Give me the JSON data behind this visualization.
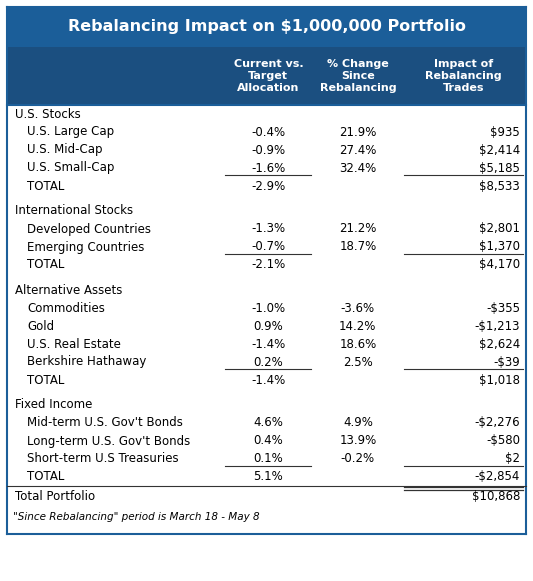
{
  "title": "Rebalancing Impact on $1,000,000 Portfolio",
  "title_bg": "#1b5e99",
  "title_color": "#ffffff",
  "header_bg": "#1b4f80",
  "header_color": "#ffffff",
  "col_headers": [
    "Current vs.\nTarget\nAllocation",
    "% Change\nSince\nRebalancing",
    "Impact of\nRebalancing\nTrades"
  ],
  "body_bg": "#ffffff",
  "border_color": "#1b5e99",
  "text_color": "#000000",
  "rows": [
    {
      "type": "section",
      "label": "U.S. Stocks",
      "col1": "",
      "col2": "",
      "col3": ""
    },
    {
      "type": "sub",
      "label": "U.S. Large Cap",
      "col1": "-0.4%",
      "col2": "21.9%",
      "col3": "$935",
      "ul1": false,
      "ul3": false
    },
    {
      "type": "sub",
      "label": "U.S. Mid-Cap",
      "col1": "-0.9%",
      "col2": "27.4%",
      "col3": "$2,414",
      "ul1": false,
      "ul3": false
    },
    {
      "type": "sub",
      "label": "U.S. Small-Cap",
      "col1": "-1.6%",
      "col2": "32.4%",
      "col3": "$5,185",
      "ul1": true,
      "ul3": true
    },
    {
      "type": "total",
      "label": "TOTAL",
      "col1": "-2.9%",
      "col2": "",
      "col3": "$8,533"
    },
    {
      "type": "gap"
    },
    {
      "type": "section",
      "label": "International Stocks",
      "col1": "",
      "col2": "",
      "col3": ""
    },
    {
      "type": "sub",
      "label": "Developed Countries",
      "col1": "-1.3%",
      "col2": "21.2%",
      "col3": "$2,801",
      "ul1": false,
      "ul3": false
    },
    {
      "type": "sub",
      "label": "Emerging Countries",
      "col1": "-0.7%",
      "col2": "18.7%",
      "col3": "$1,370",
      "ul1": true,
      "ul3": true
    },
    {
      "type": "total",
      "label": "TOTAL",
      "col1": "-2.1%",
      "col2": "",
      "col3": "$4,170"
    },
    {
      "type": "gap"
    },
    {
      "type": "section",
      "label": "Alternative Assets",
      "col1": "",
      "col2": "",
      "col3": ""
    },
    {
      "type": "sub",
      "label": "Commodities",
      "col1": "-1.0%",
      "col2": "-3.6%",
      "col3": "-$355",
      "ul1": false,
      "ul3": false
    },
    {
      "type": "sub",
      "label": "Gold",
      "col1": "0.9%",
      "col2": "14.2%",
      "col3": "-$1,213",
      "ul1": false,
      "ul3": false
    },
    {
      "type": "sub",
      "label": "U.S. Real Estate",
      "col1": "-1.4%",
      "col2": "18.6%",
      "col3": "$2,624",
      "ul1": false,
      "ul3": false
    },
    {
      "type": "sub",
      "label": "Berkshire Hathaway",
      "col1": "0.2%",
      "col2": "2.5%",
      "col3": "-$39",
      "ul1": true,
      "ul3": true
    },
    {
      "type": "total",
      "label": "TOTAL",
      "col1": "-1.4%",
      "col2": "",
      "col3": "$1,018"
    },
    {
      "type": "gap"
    },
    {
      "type": "section",
      "label": "Fixed Income",
      "col1": "",
      "col2": "",
      "col3": ""
    },
    {
      "type": "sub",
      "label": "Mid-term U.S. Gov't Bonds",
      "col1": "4.6%",
      "col2": "4.9%",
      "col3": "-$2,276",
      "ul1": false,
      "ul3": false
    },
    {
      "type": "sub",
      "label": "Long-term U.S. Gov't Bonds",
      "col1": "0.4%",
      "col2": "13.9%",
      "col3": "-$580",
      "ul1": false,
      "ul3": false
    },
    {
      "type": "sub",
      "label": "Short-term U.S Treasuries",
      "col1": "0.1%",
      "col2": "-0.2%",
      "col3": "$2",
      "ul1": true,
      "ul3": true
    },
    {
      "type": "total",
      "label": "TOTAL",
      "col1": "5.1%",
      "col2": "",
      "col3": "-$2,854"
    },
    {
      "type": "portfolio",
      "label": "Total Portfolio",
      "col1": "",
      "col2": "",
      "col3": "$10,868"
    }
  ],
  "footer": "\"Since Rebalancing\" period is March 18 - May 8"
}
